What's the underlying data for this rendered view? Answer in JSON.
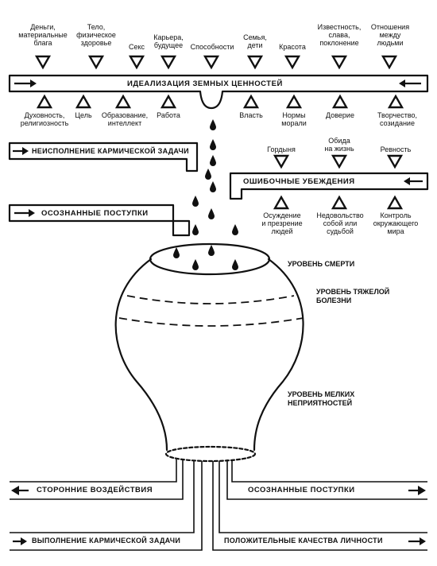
{
  "top_labels": [
    "Деньги,\nматериальные\nблага",
    "Тело,\nфизическое\nздоровье",
    "Секс",
    "Карьера,\nбудущее",
    "Способности",
    "Семья,\nдети",
    "Красота",
    "Известность,\nслава,\nпоклонение",
    "Отношения\nмежду\nлюдьми"
  ],
  "main_band_title": "ИДЕАЛИЗАЦИЯ ЗЕМНЫХ ЦЕННОСТЕЙ",
  "below_band_labels": [
    "Духовность,\nрелигиозность",
    "Цель",
    "Образование,\nинтеллект",
    "Работа",
    "Власть",
    "Нормы\nморали",
    "Доверие",
    "Творчество,\nсозидание"
  ],
  "karmic_fail_title": "НЕИСПОЛНЕНИЕ КАРМИЧЕСКОЙ ЗАДАЧИ",
  "beliefs_top_labels": [
    "Гордыня",
    "Обида\nна жизнь",
    "Ревность"
  ],
  "beliefs_title": "ОШИБОЧНЫЕ УБЕЖДЕНИЯ",
  "beliefs_bottom_labels": [
    "Осуждение\nи презрение\nлюдей",
    "Недовольство\nсобой или\nсудьбой",
    "Контроль\nокружающего\nмира"
  ],
  "conscious_left_title": "ОСОЗНАННЫЕ ПОСТУПКИ",
  "level_death": "УРОВЕНЬ СМЕРТИ",
  "level_illness": "УРОВЕНЬ ТЯЖЕЛОЙ\nБОЛЕЗНИ",
  "level_minor": "УРОВЕНЬ МЕЛКИХ\nНЕПРИЯТНОСТЕЙ",
  "external_title": "СТОРОННИЕ ВОЗДЕЙСТВИЯ",
  "conscious_right_title": "ОСОЗНАННЫЕ ПОСТУПКИ",
  "karmic_do_title": "ВЫПОЛНЕНИЕ КАРМИЧЕСКОЙ ЗАДАЧИ",
  "positive_title": "ПОЛОЖИТЕЛЬНЫЕ КАЧЕСТВА ЛИЧНОСТИ"
}
